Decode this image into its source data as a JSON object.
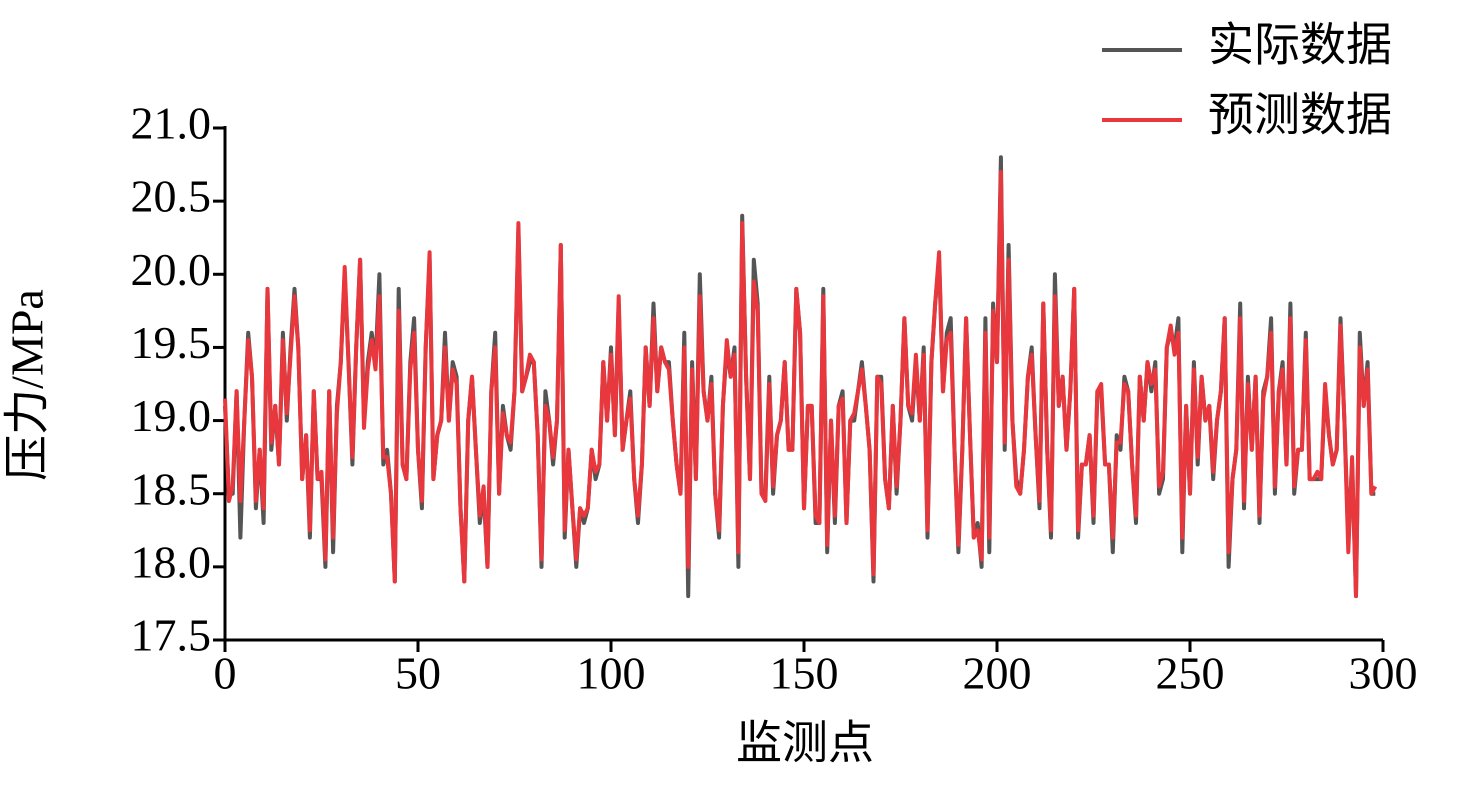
{
  "chart_data": {
    "type": "line",
    "xlabel": "监测点",
    "ylabel": "压力/MPa",
    "xlim": [
      0,
      300
    ],
    "xticks": [
      0,
      50,
      100,
      150,
      200,
      250,
      300
    ],
    "ylim": [
      17.5,
      21.0
    ],
    "yticks": [
      17.5,
      {
        "value": 18,
        "label": "18.0"
      },
      18.5,
      {
        "value": 19,
        "label": "19.0"
      },
      19.5,
      {
        "value": 20,
        "label": "20.0"
      },
      20.5,
      {
        "value": 21,
        "label": "21.0"
      }
    ],
    "legend": "upper right",
    "x": [
      0,
      1,
      2,
      3,
      4,
      5,
      6,
      7,
      8,
      9,
      10,
      11,
      12,
      13,
      14,
      15,
      16,
      17,
      18,
      19,
      20,
      21,
      22,
      23,
      24,
      25,
      26,
      27,
      28,
      29,
      30,
      31,
      32,
      33,
      34,
      35,
      36,
      37,
      38,
      39,
      40,
      41,
      42,
      43,
      44,
      45,
      46,
      47,
      48,
      49,
      50,
      51,
      52,
      53,
      54,
      55,
      56,
      57,
      58,
      59,
      60,
      61,
      62,
      63,
      64,
      65,
      66,
      67,
      68,
      69,
      70,
      71,
      72,
      73,
      74,
      75,
      76,
      77,
      78,
      79,
      80,
      81,
      82,
      83,
      84,
      85,
      86,
      87,
      88,
      89,
      90,
      91,
      92,
      93,
      94,
      95,
      96,
      97,
      98,
      99,
      100,
      101,
      102,
      103,
      104,
      105,
      106,
      107,
      108,
      109,
      110,
      111,
      112,
      113,
      114,
      115,
      116,
      117,
      118,
      119,
      120,
      121,
      122,
      123,
      124,
      125,
      126,
      127,
      128,
      129,
      130,
      131,
      132,
      133,
      134,
      135,
      136,
      137,
      138,
      139,
      140,
      141,
      142,
      143,
      144,
      145,
      146,
      147,
      148,
      149,
      150,
      151,
      152,
      153,
      154,
      155,
      156,
      157,
      158,
      159,
      160,
      161,
      162,
      163,
      164,
      165,
      166,
      167,
      168,
      169,
      170,
      171,
      172,
      173,
      174,
      175,
      176,
      177,
      178,
      179,
      180,
      181,
      182,
      183,
      184,
      185,
      186,
      187,
      188,
      189,
      190,
      191,
      192,
      193,
      194,
      195,
      196,
      197,
      198,
      199,
      200,
      201,
      202,
      203,
      204,
      205,
      206,
      207,
      208,
      209,
      210,
      211,
      212,
      213,
      214,
      215,
      216,
      217,
      218,
      219,
      220,
      221,
      222,
      223,
      224,
      225,
      226,
      227,
      228,
      229,
      230,
      231,
      232,
      233,
      234,
      235,
      236,
      237,
      238,
      239,
      240,
      241,
      242,
      243,
      244,
      245,
      246,
      247,
      248,
      249,
      250,
      251,
      252,
      253,
      254,
      255,
      256,
      257,
      258,
      259,
      260,
      261,
      262,
      263,
      264,
      265,
      266,
      267,
      268,
      269,
      270,
      271,
      272,
      273,
      274,
      275,
      276,
      277,
      278,
      279,
      280,
      281,
      282,
      283,
      284,
      285,
      286,
      287,
      288,
      289,
      290,
      291,
      292,
      293,
      294,
      295,
      296,
      297,
      298
    ],
    "series": [
      {
        "name": "实际数据",
        "color": "#555555",
        "values": [
          19.1,
          18.5,
          18.5,
          19.2,
          18.2,
          19.0,
          19.6,
          19.3,
          18.4,
          18.8,
          18.3,
          19.9,
          18.8,
          19.1,
          18.7,
          19.6,
          19.0,
          19.5,
          19.9,
          19.5,
          18.6,
          18.9,
          18.2,
          19.2,
          18.6,
          18.6,
          18.0,
          19.2,
          18.1,
          19.1,
          19.4,
          20.0,
          19.4,
          18.7,
          19.5,
          20.1,
          19.0,
          19.4,
          19.6,
          19.4,
          20.0,
          18.7,
          18.8,
          18.5,
          17.9,
          19.9,
          18.7,
          18.6,
          19.4,
          19.7,
          18.8,
          18.4,
          19.5,
          20.1,
          18.6,
          18.9,
          19.0,
          19.6,
          19.0,
          19.4,
          19.3,
          18.4,
          17.9,
          19.0,
          19.3,
          18.8,
          18.3,
          18.5,
          18.0,
          19.2,
          19.6,
          18.5,
          19.1,
          18.9,
          18.8,
          19.2,
          20.3,
          19.2,
          19.3,
          19.4,
          19.4,
          18.9,
          18.0,
          19.2,
          19.0,
          18.7,
          19.0,
          20.2,
          18.2,
          18.8,
          18.4,
          18.0,
          18.4,
          18.3,
          18.4,
          18.8,
          18.6,
          18.7,
          19.4,
          19.0,
          19.5,
          18.9,
          19.8,
          18.8,
          19.0,
          19.2,
          18.6,
          18.3,
          18.7,
          19.5,
          19.1,
          19.8,
          19.2,
          19.5,
          19.4,
          19.4,
          19.0,
          18.7,
          18.5,
          19.6,
          17.8,
          19.4,
          18.6,
          20.0,
          19.2,
          19.0,
          19.3,
          18.5,
          18.2,
          19.1,
          19.5,
          19.3,
          19.5,
          18.0,
          20.4,
          19.3,
          18.6,
          20.1,
          19.8,
          18.5,
          18.5,
          19.3,
          18.5,
          18.9,
          19.0,
          19.4,
          18.8,
          18.8,
          19.9,
          19.6,
          18.4,
          19.1,
          19.1,
          18.3,
          18.3,
          19.9,
          18.1,
          19.0,
          18.3,
          19.1,
          19.2,
          18.3,
          19.0,
          19.0,
          19.2,
          19.4,
          19.1,
          18.8,
          17.9,
          19.3,
          19.3,
          18.6,
          18.4,
          19.1,
          18.5,
          19.0,
          19.7,
          19.1,
          19.0,
          19.4,
          19.0,
          19.5,
          18.2,
          19.4,
          19.8,
          20.1,
          19.2,
          19.6,
          19.7,
          18.8,
          18.1,
          18.8,
          19.7,
          18.9,
          18.2,
          18.3,
          18.0,
          19.7,
          18.1,
          19.8,
          19.4,
          20.8,
          18.8,
          20.2,
          19.0,
          18.6,
          18.5,
          18.8,
          19.3,
          19.5,
          18.9,
          18.4,
          19.8,
          18.8,
          18.2,
          20.0,
          19.1,
          19.3,
          18.8,
          19.2,
          19.9,
          18.2,
          18.7,
          18.7,
          18.9,
          18.3,
          19.2,
          19.2,
          18.7,
          18.7,
          18.1,
          18.9,
          18.8,
          19.3,
          19.2,
          18.7,
          18.3,
          19.3,
          19.0,
          19.4,
          19.2,
          19.4,
          18.5,
          18.6,
          19.5,
          19.6,
          19.5,
          19.7,
          18.1,
          19.1,
          18.5,
          19.4,
          18.7,
          19.3,
          19.0,
          19.1,
          18.6,
          19.0,
          19.2,
          19.7,
          18.0,
          18.6,
          18.8,
          19.8,
          18.4,
          19.3,
          18.8,
          19.3,
          18.3,
          19.2,
          19.3,
          19.7,
          18.5,
          19.2,
          19.4,
          18.7,
          19.8,
          18.5,
          18.8,
          18.8,
          19.6,
          18.6,
          18.6,
          18.6,
          18.6,
          19.2,
          18.9,
          18.7,
          18.8,
          19.7,
          19.0,
          18.2,
          18.7,
          17.8,
          19.6,
          19.1,
          19.4,
          18.5,
          18.5
        ]
      },
      {
        "name": "预测数据",
        "color": "#e8383d",
        "values": [
          19.15,
          18.45,
          18.55,
          19.2,
          18.45,
          19.0,
          19.55,
          19.3,
          18.45,
          18.8,
          18.4,
          19.9,
          18.85,
          19.1,
          18.7,
          19.55,
          19.05,
          19.45,
          19.85,
          19.5,
          18.6,
          18.9,
          18.25,
          19.2,
          18.6,
          18.65,
          18.05,
          19.2,
          18.2,
          19.05,
          19.4,
          20.05,
          19.4,
          18.75,
          19.5,
          20.1,
          18.95,
          19.35,
          19.55,
          19.35,
          19.85,
          18.75,
          18.75,
          18.5,
          17.9,
          19.75,
          18.7,
          18.6,
          19.35,
          19.6,
          18.8,
          18.45,
          19.5,
          20.15,
          18.6,
          18.9,
          19.0,
          19.5,
          19.0,
          19.35,
          19.25,
          18.4,
          17.9,
          19.0,
          19.3,
          18.8,
          18.35,
          18.55,
          18.0,
          19.2,
          19.5,
          18.5,
          19.05,
          18.9,
          18.85,
          19.2,
          20.35,
          19.2,
          19.3,
          19.45,
          19.4,
          18.9,
          18.05,
          19.1,
          19.0,
          18.75,
          19.0,
          20.2,
          18.25,
          18.8,
          18.4,
          18.05,
          18.4,
          18.35,
          18.4,
          18.8,
          18.65,
          18.7,
          19.4,
          19.0,
          19.45,
          18.9,
          19.85,
          18.8,
          19.0,
          19.15,
          18.6,
          18.35,
          18.7,
          19.5,
          19.1,
          19.7,
          19.2,
          19.5,
          19.4,
          19.35,
          19.0,
          18.7,
          18.5,
          19.5,
          18.0,
          19.35,
          18.6,
          19.85,
          19.2,
          19.0,
          19.25,
          18.5,
          18.25,
          19.1,
          19.55,
          19.3,
          19.45,
          18.1,
          20.35,
          19.3,
          18.6,
          19.95,
          19.75,
          18.5,
          18.45,
          19.25,
          18.55,
          18.9,
          19.0,
          19.4,
          18.8,
          18.8,
          19.9,
          19.6,
          18.4,
          19.1,
          19.1,
          18.35,
          18.3,
          19.85,
          18.15,
          19.0,
          18.35,
          19.1,
          19.15,
          18.3,
          19.0,
          19.05,
          19.2,
          19.35,
          19.1,
          18.8,
          17.95,
          19.3,
          19.25,
          18.6,
          18.4,
          19.1,
          18.55,
          19.0,
          19.7,
          19.1,
          19.05,
          19.45,
          19.0,
          19.45,
          18.25,
          19.4,
          19.8,
          20.15,
          19.2,
          19.55,
          19.6,
          18.8,
          18.15,
          18.8,
          19.7,
          18.9,
          18.2,
          18.25,
          18.05,
          19.6,
          18.2,
          19.75,
          19.4,
          20.7,
          18.85,
          20.1,
          19.0,
          18.55,
          18.5,
          18.8,
          19.3,
          19.45,
          18.9,
          18.45,
          19.8,
          18.8,
          18.25,
          19.85,
          19.1,
          19.3,
          18.8,
          19.2,
          19.9,
          18.25,
          18.7,
          18.7,
          18.9,
          18.35,
          19.2,
          19.25,
          18.7,
          18.7,
          18.2,
          18.85,
          18.85,
          19.25,
          19.2,
          18.7,
          18.35,
          19.3,
          19.0,
          19.4,
          19.25,
          19.35,
          18.55,
          18.65,
          19.5,
          19.65,
          19.45,
          19.6,
          18.2,
          19.1,
          18.5,
          19.35,
          18.75,
          19.3,
          19.0,
          19.1,
          18.65,
          19.0,
          19.2,
          19.7,
          18.1,
          18.6,
          18.8,
          19.7,
          18.45,
          19.25,
          18.8,
          19.3,
          18.35,
          19.15,
          19.3,
          19.6,
          18.55,
          19.2,
          19.35,
          18.7,
          19.7,
          18.55,
          18.8,
          18.8,
          19.55,
          18.6,
          18.6,
          18.65,
          18.6,
          19.25,
          18.9,
          18.7,
          18.8,
          19.65,
          19.0,
          18.1,
          18.75,
          17.8,
          19.5,
          19.1,
          19.35,
          18.5,
          18.55
        ]
      }
    ]
  }
}
